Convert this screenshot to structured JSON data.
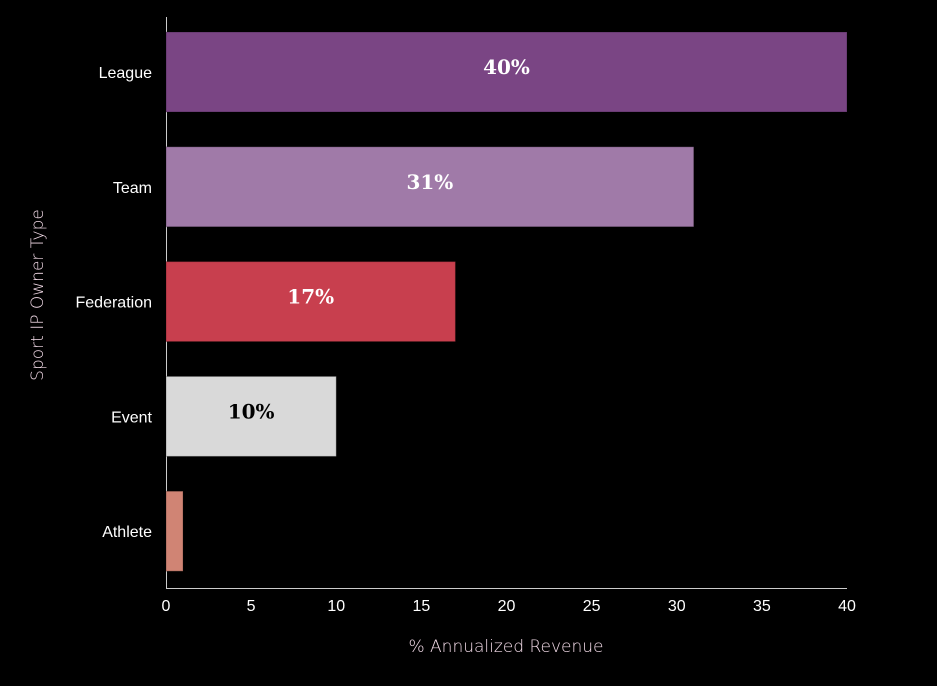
{
  "chart_data": {
    "type": "bar",
    "orientation": "horizontal",
    "categories": [
      "League",
      "Team",
      "Federation",
      "Event",
      "Athlete"
    ],
    "values": [
      40,
      31,
      17,
      10,
      1
    ],
    "data_labels": [
      "40%",
      "31%",
      "17%",
      "10%",
      ""
    ],
    "colors": [
      "#7a4584",
      "#a07aa8",
      "#c83f4e",
      "#d9d9d9",
      "#d08474"
    ],
    "label_colors": [
      "#ffffff",
      "#ffffff",
      "#ffffff",
      "#000000",
      "#000000"
    ],
    "xlabel": "% Annualized Revenue",
    "ylabel": "Sport IP Owner Type",
    "xlim": [
      0,
      40
    ],
    "xticks": [
      "0",
      "5",
      "10",
      "15",
      "20",
      "25",
      "30",
      "35",
      "40"
    ],
    "grid": false
  }
}
